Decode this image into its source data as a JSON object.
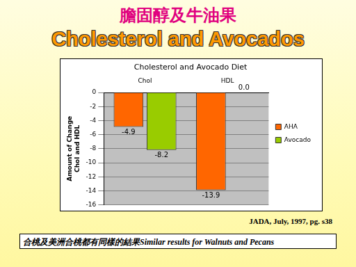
{
  "slide": {
    "title_zh": "膽固醇及牛油果",
    "title_en": "Cholesterol and Avocados",
    "source": "JADA, July, 1997, pg. s38",
    "note": "合桃及美洲合桃都有同樣的結果Similar results for Walnuts and Pecans"
  },
  "chart_data": {
    "type": "bar",
    "title": "Cholesterol and Avocado Diet",
    "y_label": [
      "Amount of Change",
      "Chol and HDL"
    ],
    "categories": [
      "Chol",
      "HDL"
    ],
    "series": [
      {
        "name": "AHA",
        "color": "#ff6600",
        "values": [
          -4.9,
          -13.9
        ],
        "value_labels": [
          "-4.9",
          "-13.9"
        ]
      },
      {
        "name": "Avocado",
        "color": "#99cc00",
        "values": [
          -8.2,
          0.0
        ],
        "value_labels": [
          "-8.2",
          "0.0"
        ]
      }
    ],
    "ylim": [
      -16,
      0
    ],
    "yticks": [
      -16,
      -14,
      -12,
      -10,
      -8,
      -6,
      -4,
      -2,
      0
    ],
    "grid": true,
    "legend": "right",
    "data_labels": true
  }
}
